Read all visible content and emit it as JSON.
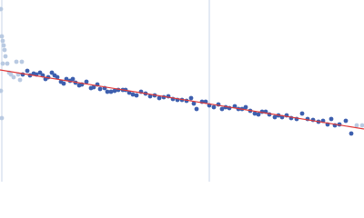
{
  "chart_data": {
    "type": "scatter",
    "xlim": [
      0,
      400
    ],
    "ylim": [
      0,
      200
    ],
    "vlines": [
      2,
      230
    ],
    "vline_color": "#c9d6e8",
    "series": [
      {
        "color": "#b9cae2",
        "x": [
          1,
          2,
          3,
          4,
          5,
          6,
          8,
          10,
          12,
          15,
          18,
          20,
          22,
          24,
          1,
          2,
          3,
          392,
          398
        ],
        "values": [
          190,
          160,
          155,
          150,
          145,
          138,
          130,
          120,
          118,
          115,
          132,
          118,
          112,
          132,
          100,
          70,
          130,
          62,
          62
        ]
      },
      {
        "color": "#3d5fae",
        "x": [
          25,
          30,
          33,
          37,
          40,
          44,
          47,
          50,
          53,
          57,
          60,
          63,
          67,
          70,
          73,
          77,
          80,
          83,
          87,
          90,
          95,
          100,
          103,
          107,
          110,
          115,
          118,
          122,
          126,
          130,
          135,
          138,
          142,
          146,
          150,
          155,
          160,
          165,
          170,
          175,
          180,
          185,
          190,
          195,
          200,
          205,
          210,
          213,
          216,
          222,
          226,
          230,
          235,
          240,
          244,
          248,
          252,
          258,
          262,
          266,
          270,
          275,
          280,
          284,
          288,
          292,
          296,
          302,
          306,
          310,
          315,
          320,
          326,
          332,
          338,
          344,
          350,
          355,
          360,
          364,
          368,
          373,
          380,
          386
        ],
        "values": [
          118,
          122,
          117,
          119,
          118,
          120,
          117,
          113,
          115,
          120,
          117,
          115,
          110,
          108,
          113,
          111,
          113,
          109,
          106,
          107,
          110,
          103,
          104,
          107,
          102,
          103,
          99,
          99,
          100,
          101,
          101,
          101,
          98,
          96,
          95,
          99,
          97,
          94,
          95,
          92,
          93,
          94,
          91,
          90,
          90,
          89,
          92,
          86,
          80,
          88,
          88,
          84,
          82,
          85,
          80,
          82,
          81,
          83,
          80,
          80,
          82,
          78,
          75,
          74,
          77,
          77,
          74,
          71,
          73,
          71,
          73,
          70,
          69,
          75,
          69,
          68,
          66,
          67,
          63,
          69,
          62,
          63,
          67,
          53
        ]
      }
    ],
    "fit": {
      "color": "#e03a3a",
      "x": [
        0,
        400
      ],
      "values": [
        123,
        58
      ]
    }
  }
}
